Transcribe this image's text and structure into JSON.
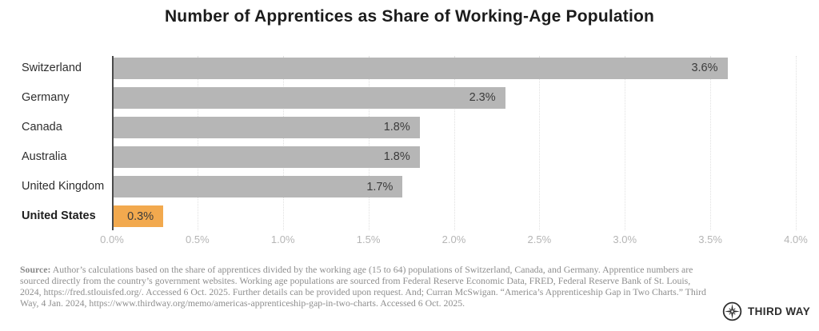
{
  "title": "Number of Apprentices as Share of Working-Age Population",
  "chart_data": {
    "type": "bar",
    "orientation": "horizontal",
    "title": "Number of Apprentices as Share of Working-Age Population",
    "categories": [
      "Switzerland",
      "Germany",
      "Canada",
      "Australia",
      "United Kingdom",
      "United States"
    ],
    "values": [
      3.6,
      2.3,
      1.8,
      1.8,
      1.7,
      0.3
    ],
    "value_labels": [
      "3.6%",
      "2.3%",
      "1.8%",
      "1.8%",
      "1.7%",
      "0.3%"
    ],
    "highlight_category": "United States",
    "bar_color": "#b6b6b6",
    "highlight_color": "#f2a94e",
    "xlim": [
      0,
      4.0
    ],
    "x_ticks": [
      "0.0%",
      "0.5%",
      "1.0%",
      "1.5%",
      "2.0%",
      "2.5%",
      "3.0%",
      "3.5%",
      "4.0%"
    ],
    "grid": "vertical-dotted",
    "axis_color": "#4a4a4a",
    "value_label_position": "inside-end"
  },
  "footer": {
    "source_label": "Source:",
    "source_text": " Author’s calculations based on the share of apprentices divided by the working age (15 to 64) populations of Switzerland, Canada, and Germany. Apprentice numbers are sourced directly from the country’s government websites. Working age populations are sourced from Federal Reserve Economic Data, FRED, Federal Reserve Bank of St. Louis, 2024, https://fred.stlouisfed.org/. Accessed 6 Oct. 2025. Further details can be provided upon request. And; Curran McSwigan. “America’s Apprenticeship Gap in Two Charts.” Third Way, 4 Jan. 2024, https://www.thirdway.org/memo/americas-apprenticeship-gap-in-two-charts. Accessed 6 Oct. 2025.",
    "logo_text": "THIRD WAY",
    "logo_icon": "compass-star-icon"
  }
}
